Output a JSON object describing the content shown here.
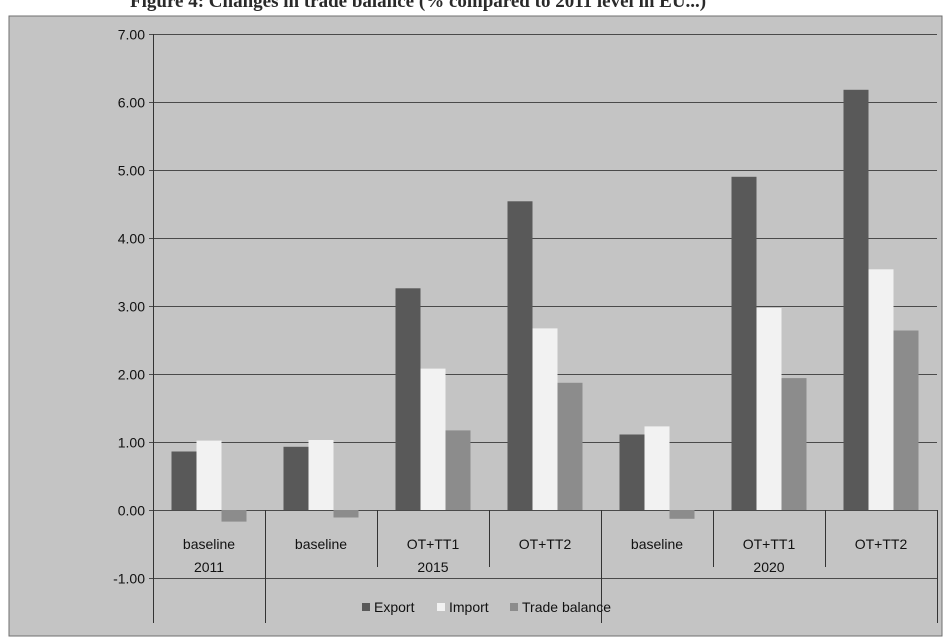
{
  "header_text": "Figure 4: Changes in trade balance (% compared to 2011 level in EU...)",
  "colors": {
    "background": "#c4c4c4",
    "plot_border": "#6f6f6f",
    "export": "#595959",
    "import": "#f2f2f2",
    "trade_balance": "#8c8c8c",
    "text": "#111111"
  },
  "chart_data": {
    "type": "bar",
    "title": "",
    "xlabel": "",
    "ylabel": "",
    "ylim": [
      -1,
      7
    ],
    "yticks": [
      -1,
      0,
      1,
      2,
      3,
      4,
      5,
      6,
      7
    ],
    "ytick_labels": [
      "-1.00",
      "0.00",
      "1.00",
      "2.00",
      "3.00",
      "4.00",
      "5.00",
      "6.00",
      "7.00"
    ],
    "grid": true,
    "legend_position": "bottom",
    "categories": [
      "baseline",
      "baseline",
      "OT+TT1",
      "OT+TT2",
      "baseline",
      "OT+TT1",
      "OT+TT2"
    ],
    "groups": [
      {
        "label": "2011",
        "span": 1
      },
      {
        "label": "2015",
        "span": 3
      },
      {
        "label": "2020",
        "span": 3
      }
    ],
    "series": [
      {
        "name": "Export",
        "values": [
          0.86,
          0.93,
          3.26,
          4.54,
          1.11,
          4.9,
          6.18
        ]
      },
      {
        "name": "Import",
        "values": [
          1.02,
          1.03,
          2.08,
          2.67,
          1.23,
          2.97,
          3.54
        ]
      },
      {
        "name": "Trade balance",
        "values": [
          -0.17,
          -0.11,
          1.17,
          1.87,
          -0.13,
          1.94,
          2.64
        ]
      }
    ]
  }
}
